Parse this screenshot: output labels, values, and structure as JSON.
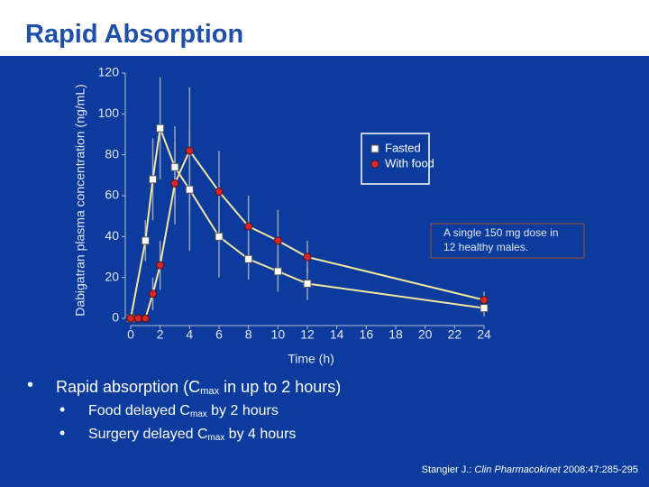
{
  "title": "Rapid Absorption",
  "bullets": [
    {
      "parts": [
        "Rapid absorption (C",
        "max",
        " in  up to 2 hours)"
      ],
      "children": [
        {
          "parts": [
            "Food delayed C",
            "max",
            " by 2 hours"
          ]
        },
        {
          "parts": [
            "Surgery delayed C",
            "max",
            " by 4 hours"
          ]
        }
      ]
    }
  ],
  "citation": [
    "Stangier J.: ",
    "Clin Pharmacokinet",
    " 2008:47:285-295"
  ],
  "chart_data": {
    "type": "line",
    "x_label": "Time (h)",
    "y_label": "Dabigatran plasma concentration (ng/mL)",
    "xlim": [
      0,
      24
    ],
    "xticks": [
      0,
      2,
      4,
      6,
      8,
      10,
      12,
      14,
      16,
      18,
      20,
      22,
      24
    ],
    "ylim": [
      0,
      120
    ],
    "yticks": [
      0,
      20,
      40,
      60,
      80,
      100,
      120
    ],
    "line_color": "#f2e6a0",
    "error_color": "#9aa3b8",
    "annotation": [
      "A single 150 mg dose in",
      "12 healthy males."
    ],
    "series": [
      {
        "name": "Fasted",
        "marker": "square",
        "color": "#ffffff",
        "x": [
          0,
          1,
          1.5,
          2,
          3,
          4,
          6,
          8,
          10,
          12,
          24
        ],
        "values": [
          0,
          38,
          68,
          93,
          74,
          63,
          40,
          29,
          23,
          17,
          5
        ],
        "errors": [
          0,
          10,
          20,
          25,
          20,
          30,
          20,
          10,
          10,
          8,
          4
        ]
      },
      {
        "name": "With food",
        "marker": "circle",
        "color": "#d9262b",
        "x": [
          0,
          0.5,
          1,
          1.5,
          2,
          3,
          4,
          6,
          8,
          10,
          12,
          24
        ],
        "values": [
          0,
          0,
          0,
          12,
          26,
          66,
          82,
          62,
          45,
          38,
          30,
          9
        ],
        "errors": [
          0,
          0,
          0,
          8,
          12,
          20,
          31,
          20,
          15,
          15,
          8,
          4
        ]
      }
    ]
  }
}
